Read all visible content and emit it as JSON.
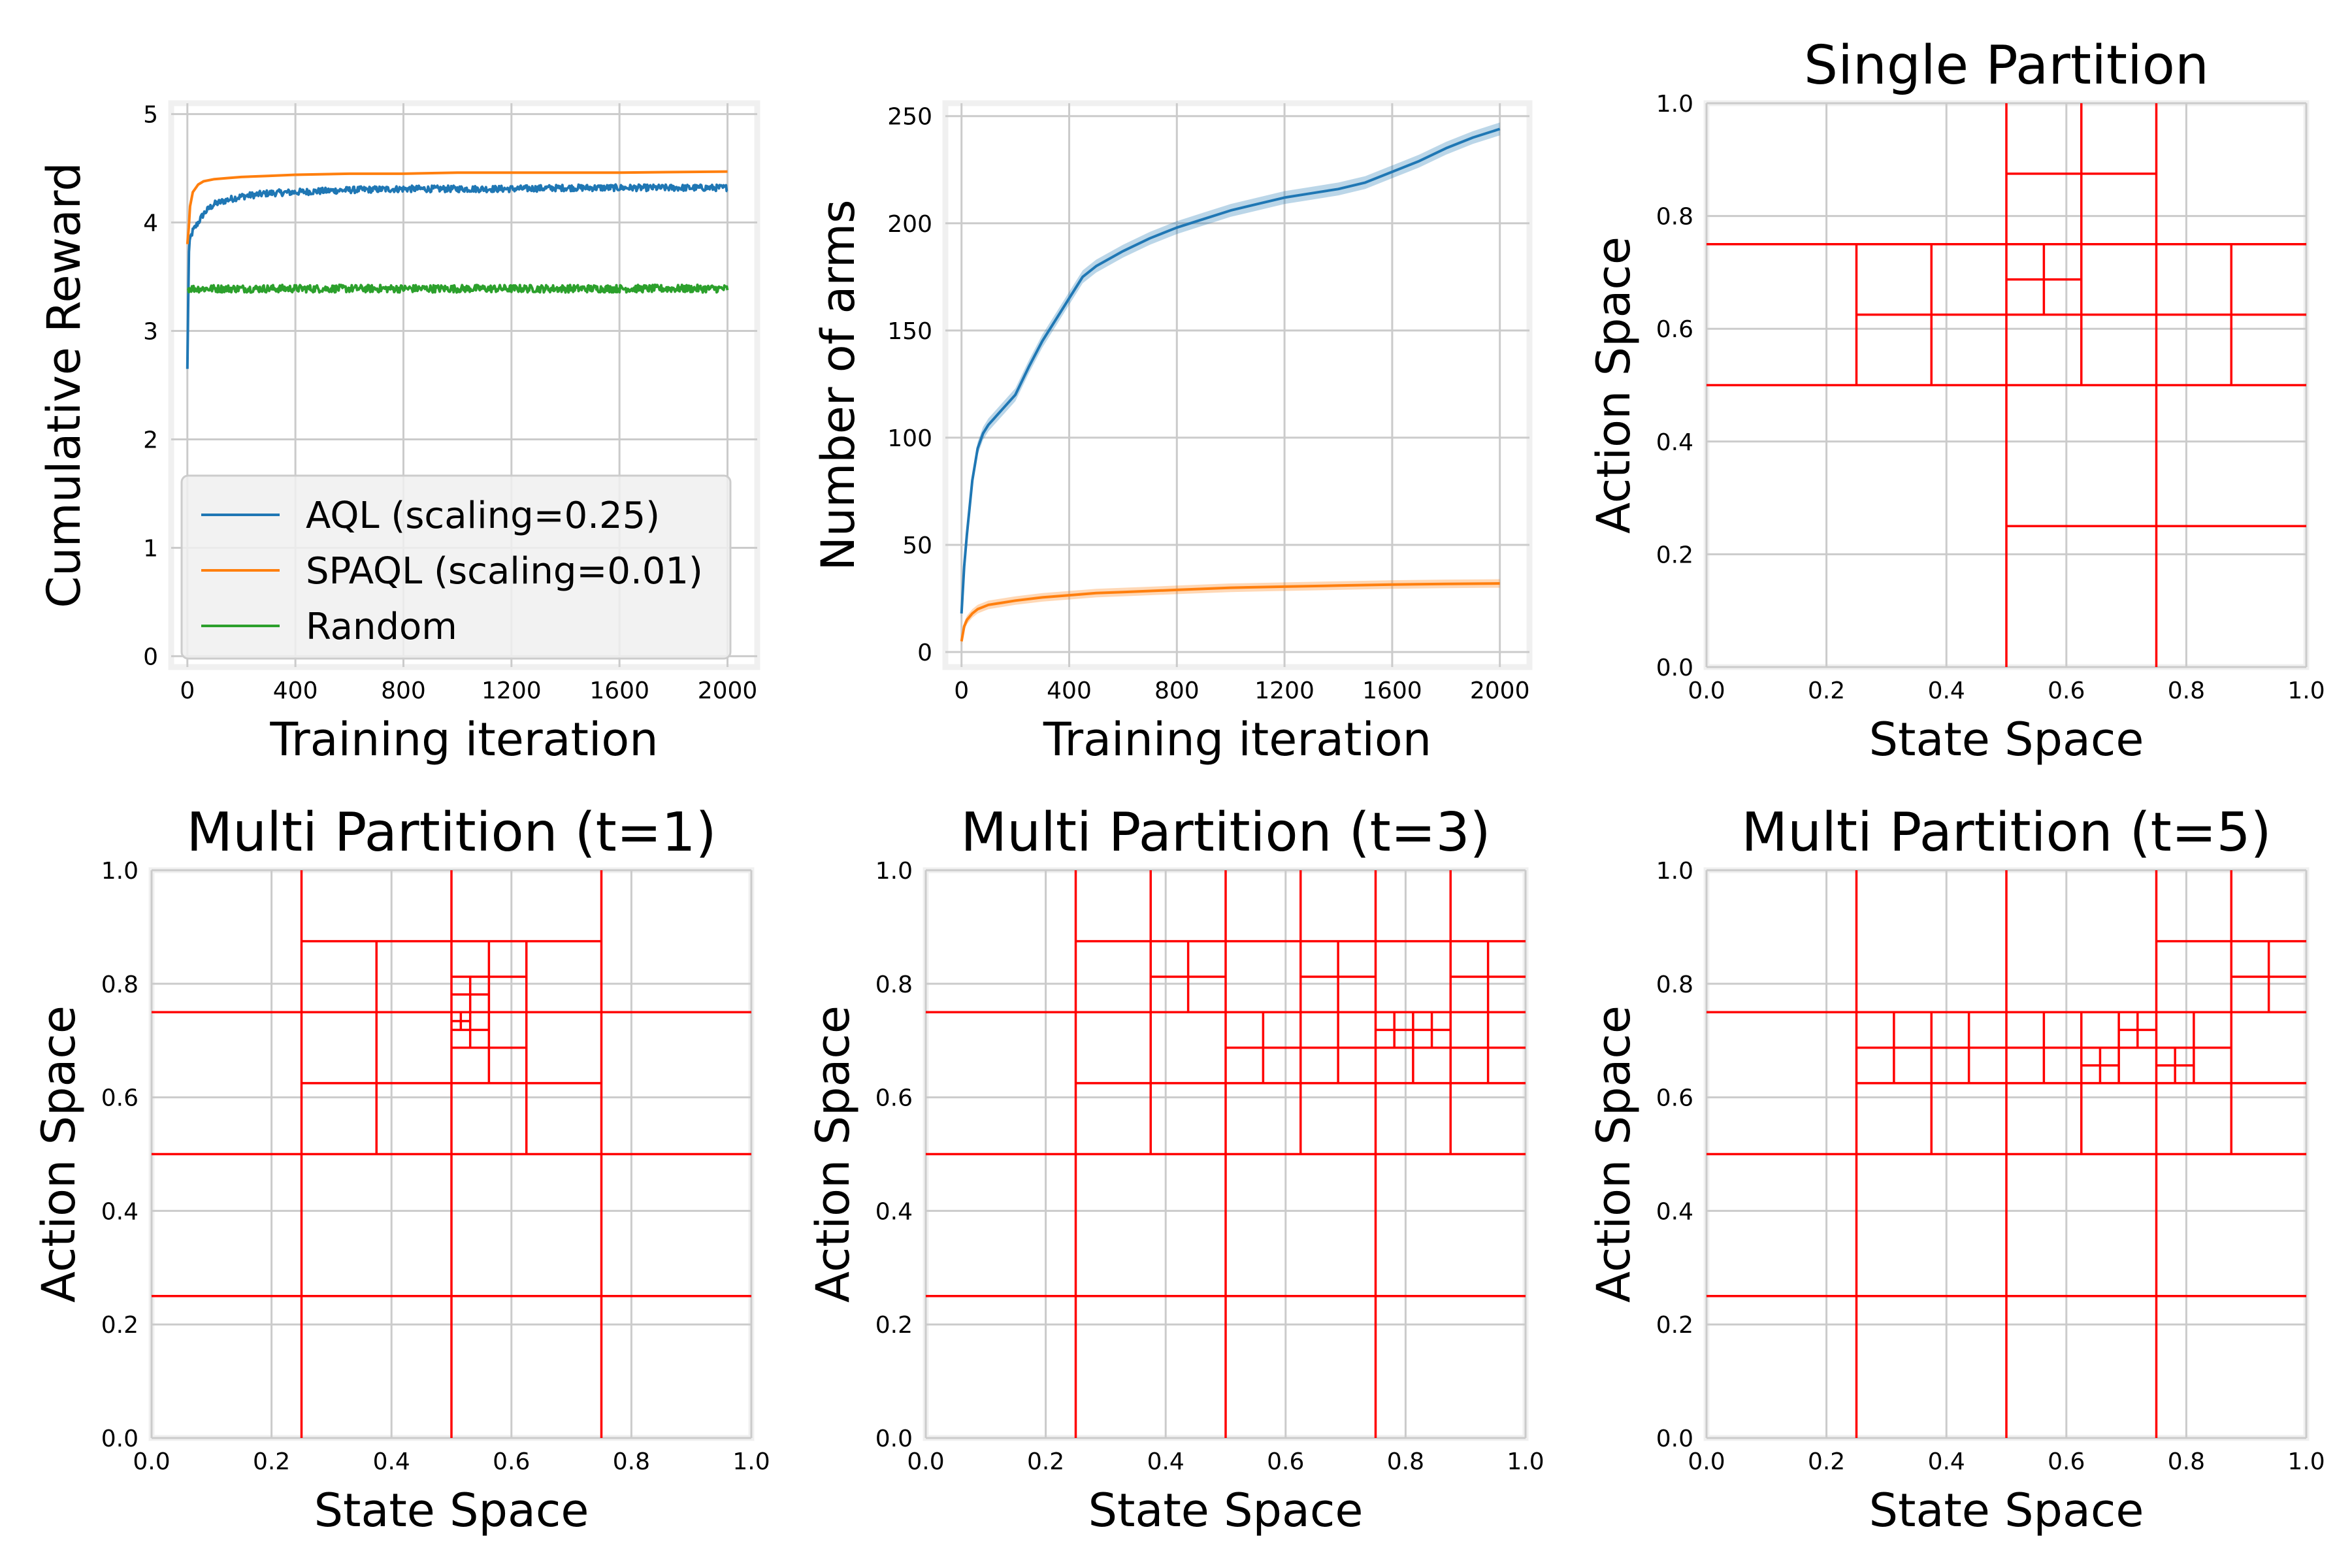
{
  "colors": {
    "aql": "#1f77b4",
    "spaql": "#ff7f0e",
    "random": "#2ca02c",
    "partition": "#ff0000"
  },
  "chart_data": [
    {
      "id": "reward",
      "type": "line",
      "title": "",
      "xlabel": "Training iteration",
      "ylabel": "Cumulative Reward",
      "xlim": [
        -60,
        2110
      ],
      "ylim": [
        -0.1,
        5.1
      ],
      "xticks": [
        0,
        400,
        800,
        1200,
        1600,
        2000
      ],
      "xtick_labels": [
        "0",
        "400",
        "800",
        "1200",
        "1600",
        "2000"
      ],
      "yticks": [
        0,
        1,
        2,
        3,
        4,
        5
      ],
      "ytick_labels": [
        "0",
        "1",
        "2",
        "3",
        "4",
        "5"
      ],
      "grid": true,
      "legend": "lower-left",
      "series": [
        {
          "name": "AQL (scaling=0.25)",
          "color": "#1f77b4",
          "noise": 0.03,
          "x": [
            0,
            5,
            10,
            20,
            40,
            60,
            80,
            100,
            150,
            200,
            300,
            400,
            500,
            600,
            800,
            1000,
            1200,
            1400,
            1600,
            1800,
            2000
          ],
          "y": [
            2.65,
            3.7,
            3.85,
            3.92,
            4.0,
            4.08,
            4.13,
            4.17,
            4.21,
            4.24,
            4.27,
            4.28,
            4.29,
            4.3,
            4.31,
            4.31,
            4.31,
            4.32,
            4.32,
            4.32,
            4.32
          ]
        },
        {
          "name": "SPAQL (scaling=0.01)",
          "color": "#ff7f0e",
          "noise": 0,
          "x": [
            0,
            5,
            10,
            20,
            40,
            60,
            100,
            150,
            200,
            300,
            400,
            600,
            800,
            1000,
            1200,
            1600,
            2000
          ],
          "y": [
            3.8,
            3.95,
            4.15,
            4.28,
            4.35,
            4.38,
            4.4,
            4.41,
            4.42,
            4.43,
            4.44,
            4.45,
            4.45,
            4.46,
            4.46,
            4.46,
            4.47
          ]
        },
        {
          "name": "Random",
          "color": "#2ca02c",
          "noise": 0.035,
          "x": [
            0,
            500,
            1000,
            1500,
            2000
          ],
          "y": [
            3.39,
            3.39,
            3.39,
            3.39,
            3.39
          ]
        }
      ]
    },
    {
      "id": "arms",
      "type": "line",
      "title": "",
      "xlabel": "Training iteration",
      "ylabel": "Number of arms",
      "xlim": [
        -60,
        2110
      ],
      "ylim": [
        -7,
        256
      ],
      "xticks": [
        0,
        400,
        800,
        1200,
        1600,
        2000
      ],
      "xtick_labels": [
        "0",
        "400",
        "800",
        "1200",
        "1600",
        "2000"
      ],
      "yticks": [
        0,
        50,
        100,
        150,
        200,
        250
      ],
      "ytick_labels": [
        "0",
        "50",
        "100",
        "150",
        "200",
        "250"
      ],
      "grid": true,
      "series": [
        {
          "color": "#1f77b4",
          "band": 3,
          "x": [
            0,
            10,
            20,
            40,
            60,
            80,
            100,
            150,
            200,
            250,
            300,
            350,
            400,
            450,
            500,
            600,
            700,
            800,
            900,
            1000,
            1100,
            1200,
            1300,
            1400,
            1500,
            1600,
            1700,
            1800,
            1900,
            2000
          ],
          "y": [
            18,
            40,
            55,
            80,
            95,
            102,
            106,
            113,
            120,
            133,
            145,
            155,
            165,
            175,
            180,
            187,
            193,
            198,
            202,
            206,
            209,
            212,
            214,
            216,
            219,
            224,
            229,
            235,
            240,
            244
          ]
        },
        {
          "color": "#ff7f0e",
          "band": 2,
          "x": [
            0,
            10,
            20,
            40,
            60,
            100,
            150,
            200,
            300,
            400,
            500,
            600,
            800,
            1000,
            1200,
            1400,
            1600,
            1800,
            2000
          ],
          "y": [
            5,
            12,
            15,
            18,
            20,
            22,
            23,
            24,
            25.5,
            26.5,
            27.5,
            28,
            29,
            30,
            30.5,
            31,
            31.5,
            31.8,
            32
          ]
        }
      ]
    },
    {
      "id": "single",
      "type": "partition",
      "title": "Single Partition",
      "xlabel": "State Space",
      "ylabel": "Action Space",
      "xlim": [
        0,
        1
      ],
      "ylim": [
        0,
        1
      ],
      "xticks": [
        0,
        0.2,
        0.4,
        0.6,
        0.8,
        1.0
      ],
      "xtick_labels": [
        "0.0",
        "0.2",
        "0.4",
        "0.6",
        "0.8",
        "1.0"
      ],
      "yticks": [
        0,
        0.2,
        0.4,
        0.6,
        0.8,
        1.0
      ],
      "ytick_labels": [
        "0.0",
        "0.2",
        "0.4",
        "0.6",
        "0.8",
        "1.0"
      ],
      "grid": true,
      "segments": [
        [
          0.5,
          0,
          0.5,
          1
        ],
        [
          0.75,
          0,
          0.75,
          1
        ],
        [
          0,
          0.5,
          1,
          0.5
        ],
        [
          0,
          0.75,
          1,
          0.75
        ],
        [
          0.5,
          0.25,
          1,
          0.25
        ],
        [
          0.25,
          0.5,
          0.25,
          0.75
        ],
        [
          0.25,
          0.625,
          0.5,
          0.625
        ],
        [
          0.375,
          0.5,
          0.375,
          0.75
        ],
        [
          0.75,
          0.625,
          1,
          0.625
        ],
        [
          0.875,
          0.5,
          0.875,
          0.75
        ],
        [
          0.5,
          0.625,
          0.75,
          0.625
        ],
        [
          0.625,
          0.5,
          0.625,
          1
        ],
        [
          0.5,
          0.875,
          0.75,
          0.875
        ],
        [
          0.5,
          0.6875,
          0.625,
          0.6875
        ],
        [
          0.5625,
          0.625,
          0.5625,
          0.75
        ]
      ]
    },
    {
      "id": "multi1",
      "type": "partition",
      "title": "Multi Partition (t=1)",
      "xlabel": "State Space",
      "ylabel": "Action Space",
      "xlim": [
        0,
        1
      ],
      "ylim": [
        0,
        1
      ],
      "xticks": [
        0,
        0.2,
        0.4,
        0.6,
        0.8,
        1.0
      ],
      "xtick_labels": [
        "0.0",
        "0.2",
        "0.4",
        "0.6",
        "0.8",
        "1.0"
      ],
      "yticks": [
        0,
        0.2,
        0.4,
        0.6,
        0.8,
        1.0
      ],
      "ytick_labels": [
        "0.0",
        "0.2",
        "0.4",
        "0.6",
        "0.8",
        "1.0"
      ],
      "grid": true,
      "segments": [
        [
          0,
          0.25,
          1,
          0.25
        ],
        [
          0,
          0.5,
          1,
          0.5
        ],
        [
          0,
          0.75,
          1,
          0.75
        ],
        [
          0.25,
          0,
          0.25,
          1
        ],
        [
          0.5,
          0,
          0.5,
          1
        ],
        [
          0.75,
          0,
          0.75,
          1
        ],
        [
          0.25,
          0.875,
          0.75,
          0.875
        ],
        [
          0.25,
          0.625,
          0.75,
          0.625
        ],
        [
          0.375,
          0.5,
          0.375,
          0.875
        ],
        [
          0.625,
          0.5,
          0.625,
          0.875
        ],
        [
          0.5,
          0.6875,
          0.625,
          0.6875
        ],
        [
          0.5,
          0.8125,
          0.625,
          0.8125
        ],
        [
          0.5625,
          0.625,
          0.5625,
          0.875
        ],
        [
          0.5,
          0.78125,
          0.5625,
          0.78125
        ],
        [
          0.53125,
          0.6875,
          0.53125,
          0.8125
        ],
        [
          0.5,
          0.71875,
          0.5625,
          0.71875
        ],
        [
          0.5,
          0.734375,
          0.53125,
          0.734375
        ],
        [
          0.515625,
          0.71875,
          0.515625,
          0.75
        ]
      ]
    },
    {
      "id": "multi3",
      "type": "partition",
      "title": "Multi Partition (t=3)",
      "xlabel": "State Space",
      "ylabel": "Action Space",
      "xlim": [
        0,
        1
      ],
      "ylim": [
        0,
        1
      ],
      "xticks": [
        0,
        0.2,
        0.4,
        0.6,
        0.8,
        1.0
      ],
      "xtick_labels": [
        "0.0",
        "0.2",
        "0.4",
        "0.6",
        "0.8",
        "1.0"
      ],
      "yticks": [
        0,
        0.2,
        0.4,
        0.6,
        0.8,
        1.0
      ],
      "ytick_labels": [
        "0.0",
        "0.2",
        "0.4",
        "0.6",
        "0.8",
        "1.0"
      ],
      "grid": true,
      "segments": [
        [
          0,
          0.25,
          1,
          0.25
        ],
        [
          0,
          0.5,
          1,
          0.5
        ],
        [
          0,
          0.75,
          1,
          0.75
        ],
        [
          0.25,
          0,
          0.25,
          1
        ],
        [
          0.5,
          0,
          0.5,
          1
        ],
        [
          0.75,
          0,
          0.75,
          1
        ],
        [
          0.25,
          0.875,
          1,
          0.875
        ],
        [
          0.25,
          0.625,
          1,
          0.625
        ],
        [
          0.375,
          0.5,
          0.375,
          1
        ],
        [
          0.625,
          0.5,
          0.625,
          1
        ],
        [
          0.875,
          0.5,
          0.875,
          1
        ],
        [
          0.375,
          0.8125,
          0.5,
          0.8125
        ],
        [
          0.4375,
          0.75,
          0.4375,
          0.875
        ],
        [
          0.5,
          0.6875,
          0.625,
          0.6875
        ],
        [
          0.5625,
          0.625,
          0.5625,
          0.75
        ],
        [
          0.625,
          0.6875,
          0.75,
          0.6875
        ],
        [
          0.625,
          0.8125,
          0.75,
          0.8125
        ],
        [
          0.6875,
          0.625,
          0.6875,
          0.875
        ],
        [
          0.75,
          0.6875,
          0.875,
          0.6875
        ],
        [
          0.8125,
          0.625,
          0.8125,
          0.75
        ],
        [
          0.875,
          0.6875,
          1,
          0.6875
        ],
        [
          0.875,
          0.8125,
          1,
          0.8125
        ],
        [
          0.9375,
          0.625,
          0.9375,
          0.875
        ],
        [
          0.75,
          0.71875,
          0.875,
          0.71875
        ],
        [
          0.78125,
          0.6875,
          0.78125,
          0.75
        ],
        [
          0.84375,
          0.6875,
          0.84375,
          0.75
        ]
      ]
    },
    {
      "id": "multi5",
      "type": "partition",
      "title": "Multi Partition (t=5)",
      "xlabel": "State Space",
      "ylabel": "Action Space",
      "xlim": [
        0,
        1
      ],
      "ylim": [
        0,
        1
      ],
      "xticks": [
        0,
        0.2,
        0.4,
        0.6,
        0.8,
        1.0
      ],
      "xtick_labels": [
        "0.0",
        "0.2",
        "0.4",
        "0.6",
        "0.8",
        "1.0"
      ],
      "yticks": [
        0,
        0.2,
        0.4,
        0.6,
        0.8,
        1.0
      ],
      "ytick_labels": [
        "0.0",
        "0.2",
        "0.4",
        "0.6",
        "0.8",
        "1.0"
      ],
      "grid": true,
      "segments": [
        [
          0,
          0.25,
          1,
          0.25
        ],
        [
          0,
          0.5,
          1,
          0.5
        ],
        [
          0,
          0.75,
          1,
          0.75
        ],
        [
          0.25,
          0,
          0.25,
          1
        ],
        [
          0.5,
          0,
          0.5,
          1
        ],
        [
          0.75,
          0,
          0.75,
          1
        ],
        [
          0.25,
          0.625,
          1,
          0.625
        ],
        [
          0.75,
          0.875,
          1,
          0.875
        ],
        [
          0.375,
          0.5,
          0.375,
          0.75
        ],
        [
          0.625,
          0.5,
          0.625,
          0.75
        ],
        [
          0.875,
          0.5,
          0.875,
          1
        ],
        [
          0.25,
          0.6875,
          0.875,
          0.6875
        ],
        [
          0.3125,
          0.625,
          0.3125,
          0.75
        ],
        [
          0.4375,
          0.625,
          0.4375,
          0.75
        ],
        [
          0.5625,
          0.625,
          0.5625,
          0.75
        ],
        [
          0.6875,
          0.625,
          0.6875,
          0.75
        ],
        [
          0.8125,
          0.625,
          0.8125,
          0.75
        ],
        [
          0.875,
          0.8125,
          1,
          0.8125
        ],
        [
          0.9375,
          0.75,
          0.9375,
          0.875
        ],
        [
          0.625,
          0.65625,
          0.6875,
          0.65625
        ],
        [
          0.65625,
          0.625,
          0.65625,
          0.6875
        ],
        [
          0.6875,
          0.71875,
          0.75,
          0.71875
        ],
        [
          0.71875,
          0.6875,
          0.71875,
          0.75
        ],
        [
          0.75,
          0.65625,
          0.8125,
          0.65625
        ],
        [
          0.78125,
          0.625,
          0.78125,
          0.6875
        ]
      ]
    }
  ]
}
